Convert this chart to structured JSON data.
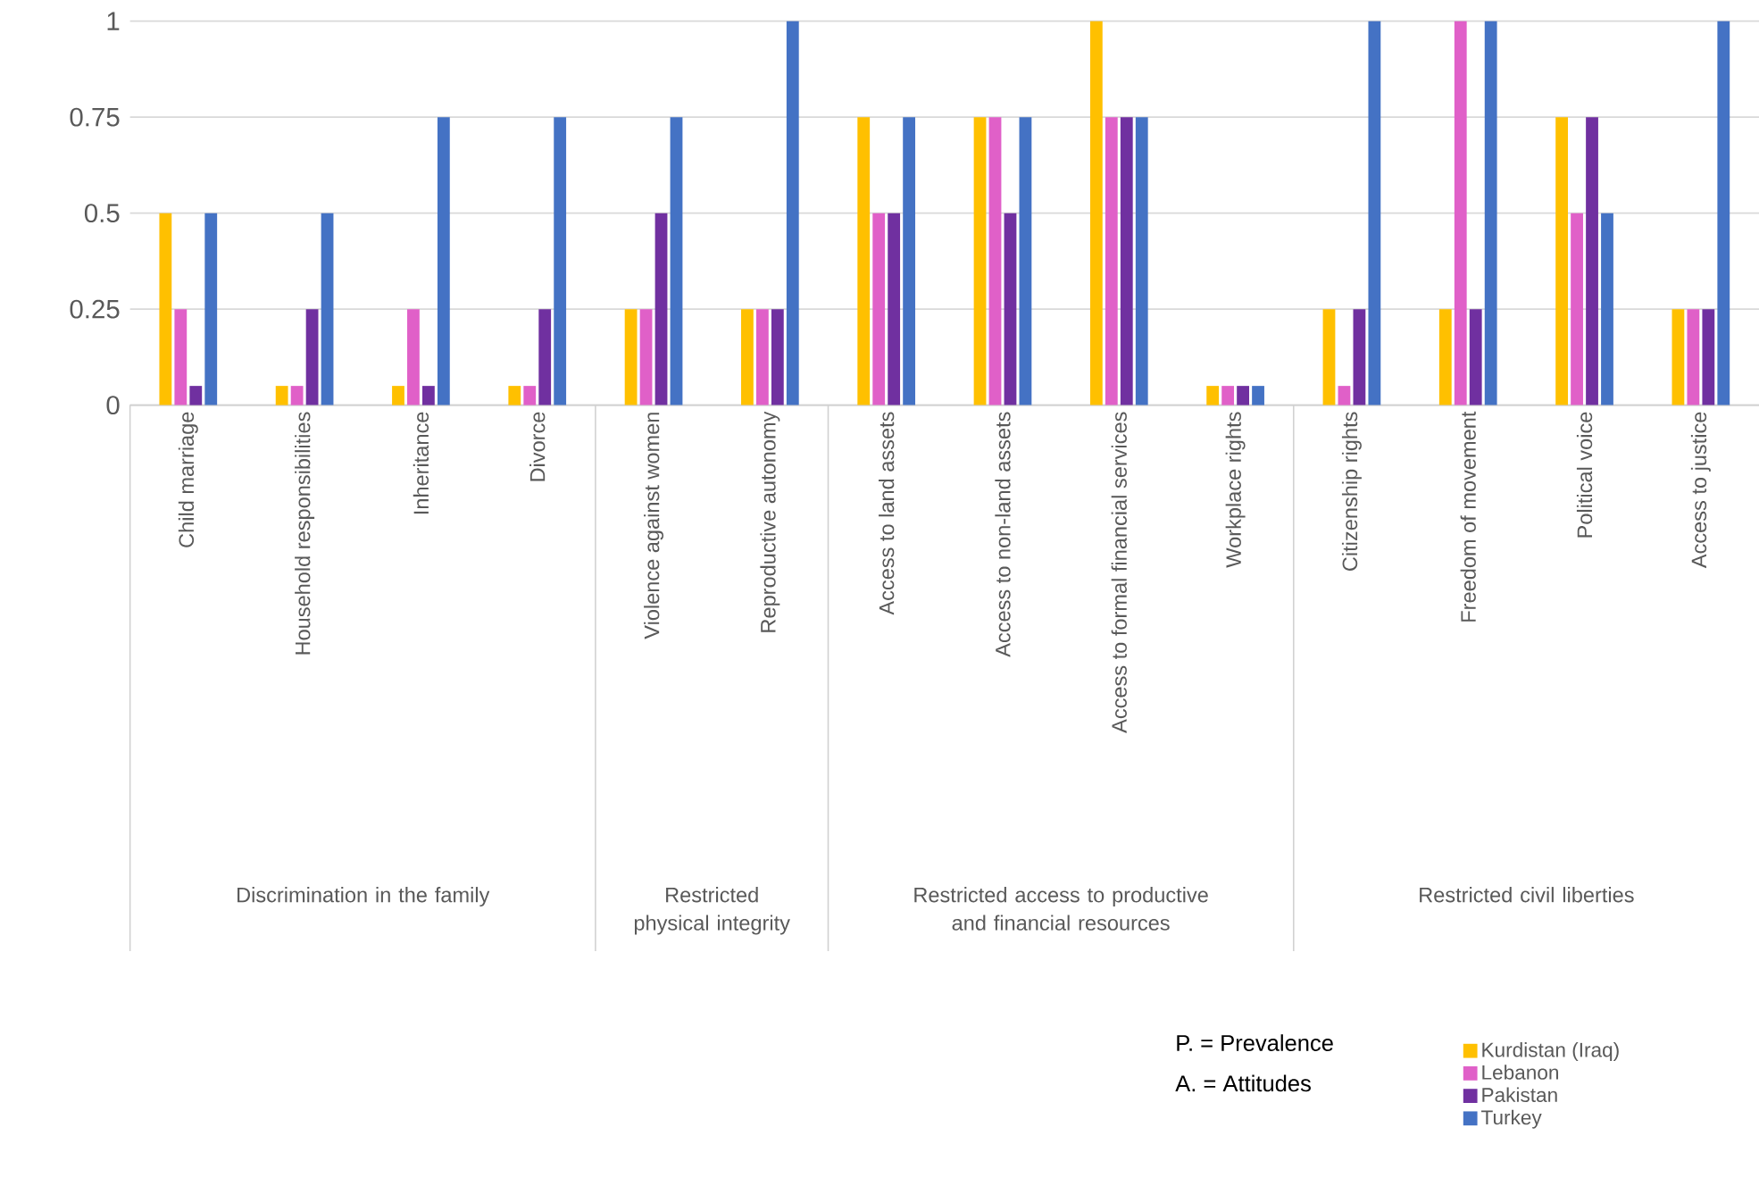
{
  "chart_data": {
    "type": "bar",
    "categories": [
      "Child marriage",
      "Household responsibilities",
      "Inheritance",
      "Divorce",
      "Violence against women",
      "Reproductive autonomy",
      "Access to land assets",
      "Access to non-land assets",
      "Access to formal financial services",
      "Workplace rights",
      "Citizenship rights",
      "Freedom of movement",
      "Political voice",
      "Access to justice"
    ],
    "series": [
      {
        "name": "Kurdistan (Iraq)",
        "color": "#ffc000",
        "values": [
          0.5,
          0.05,
          0.05,
          0.05,
          0.25,
          0.25,
          0.75,
          0.75,
          1,
          0.05,
          0.25,
          0.25,
          0.75,
          0.25
        ]
      },
      {
        "name": "Lebanon",
        "color": "#e060c8",
        "values": [
          0.25,
          0.05,
          0.25,
          0.05,
          0.25,
          0.25,
          0.5,
          0.75,
          0.75,
          0.05,
          0.05,
          1,
          0.5,
          0.25
        ]
      },
      {
        "name": "Pakistan",
        "color": "#7030a0",
        "values": [
          0.05,
          0.25,
          0.05,
          0.25,
          0.5,
          0.25,
          0.5,
          0.5,
          0.75,
          0.05,
          0.25,
          0.25,
          0.75,
          0.25
        ]
      },
      {
        "name": "Turkey",
        "color": "#4472c4",
        "values": [
          0.5,
          0.5,
          0.75,
          0.75,
          0.75,
          1,
          0.75,
          0.75,
          0.75,
          0.05,
          1,
          1,
          0.5,
          1
        ]
      }
    ],
    "ylim": [
      0,
      1
    ],
    "yticks": [
      0,
      0.25,
      0.5,
      0.75,
      1
    ],
    "grid": "y",
    "legend": "bottom right",
    "annotations": [
      "Discrimination in the family",
      "Restricted physical integrity",
      "Restricted access to productive and financial resources",
      "Restricted civil liberties",
      "P. = Prevalence",
      "A. = Attitudes"
    ]
  }
}
